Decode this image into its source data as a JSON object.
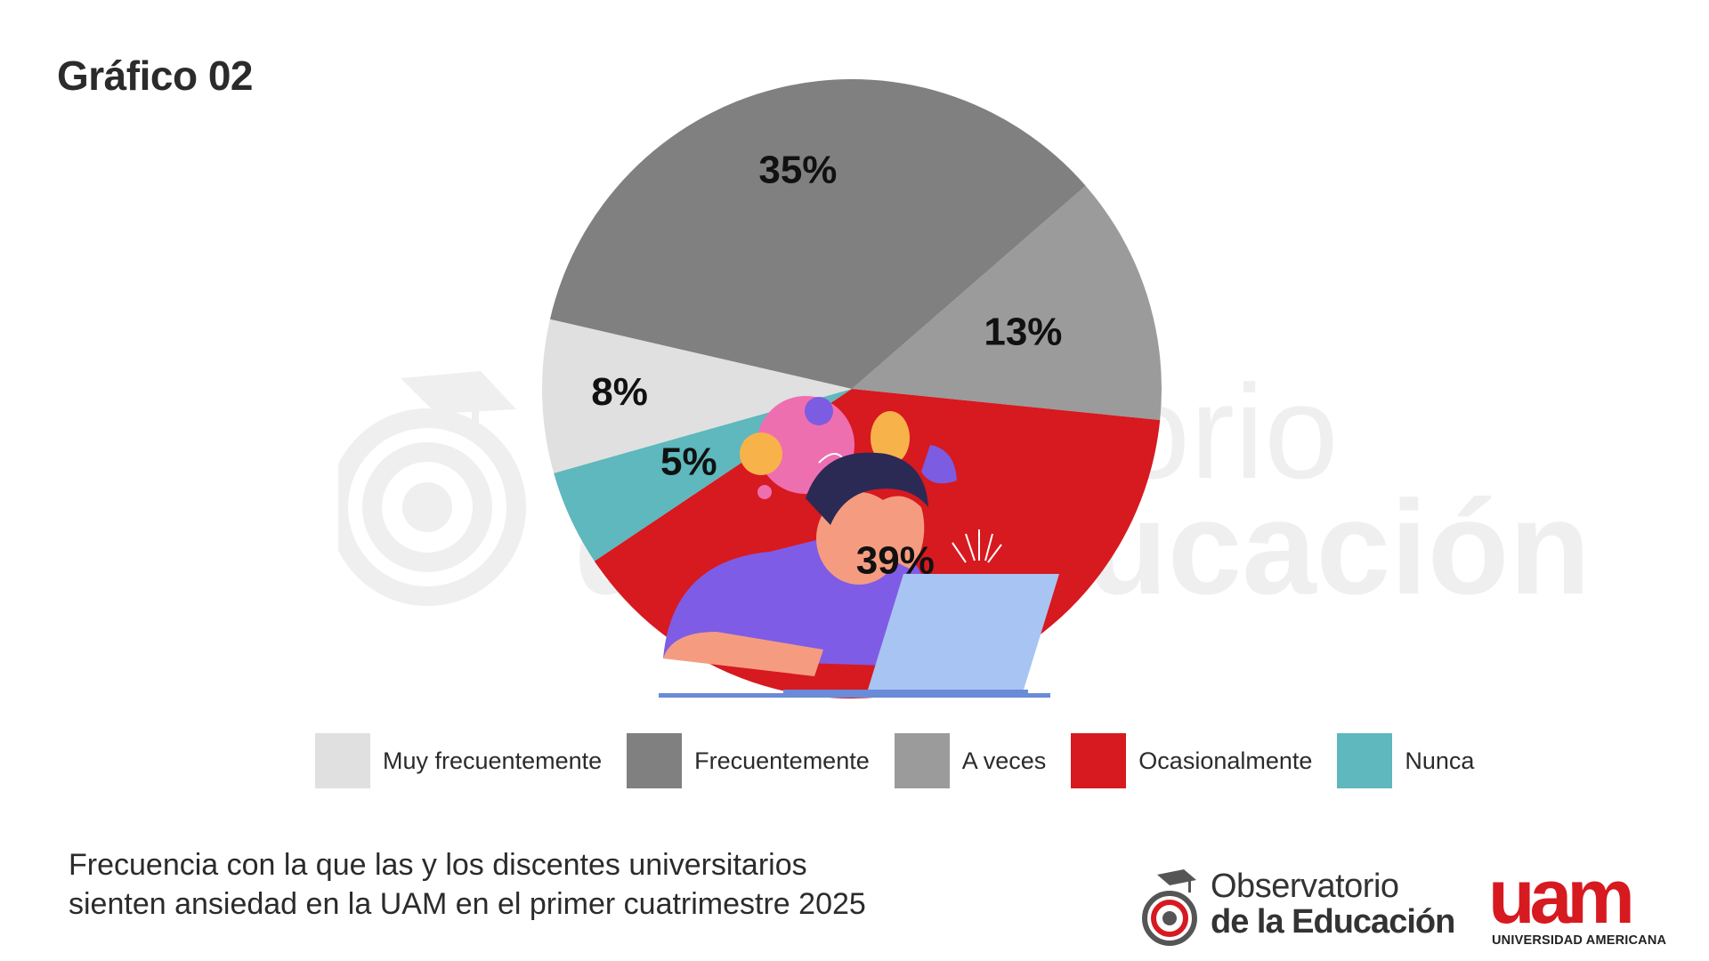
{
  "page": {
    "title": "Gráfico 02",
    "caption_line1": "Frecuencia con la que las y los discentes universitarios",
    "caption_line2": "sienten ansiedad en la UAM en el primer cuatrimestre 2025"
  },
  "watermark": {
    "line1": "Observatorio",
    "line2": "de la Educación"
  },
  "logos": {
    "observatorio_line1": "Observatorio",
    "observatorio_line2": "de la Educación",
    "uam_mark": "uam",
    "uam_sub": "UNIVERSIDAD AMERICANA"
  },
  "colors": {
    "muy_frecuentemente": "#e0e0e0",
    "frecuentemente": "#808080",
    "a_veces": "#9b9b9b",
    "ocasionalmente": "#d71920",
    "nunca": "#5eb8bd",
    "brand_red": "#d71920"
  },
  "chart_data": {
    "type": "pie",
    "title": "Gráfico 02",
    "categories": [
      "Muy frecuentemente",
      "Frecuentemente",
      "A veces",
      "Ocasionalmente",
      "Nunca"
    ],
    "values": [
      8,
      35,
      13,
      39,
      5
    ],
    "labels": [
      "8%",
      "35%",
      "13%",
      "39%",
      "5%"
    ],
    "colors": [
      "#e0e0e0",
      "#808080",
      "#9b9b9b",
      "#d71920",
      "#5eb8bd"
    ],
    "legend_position": "bottom"
  }
}
